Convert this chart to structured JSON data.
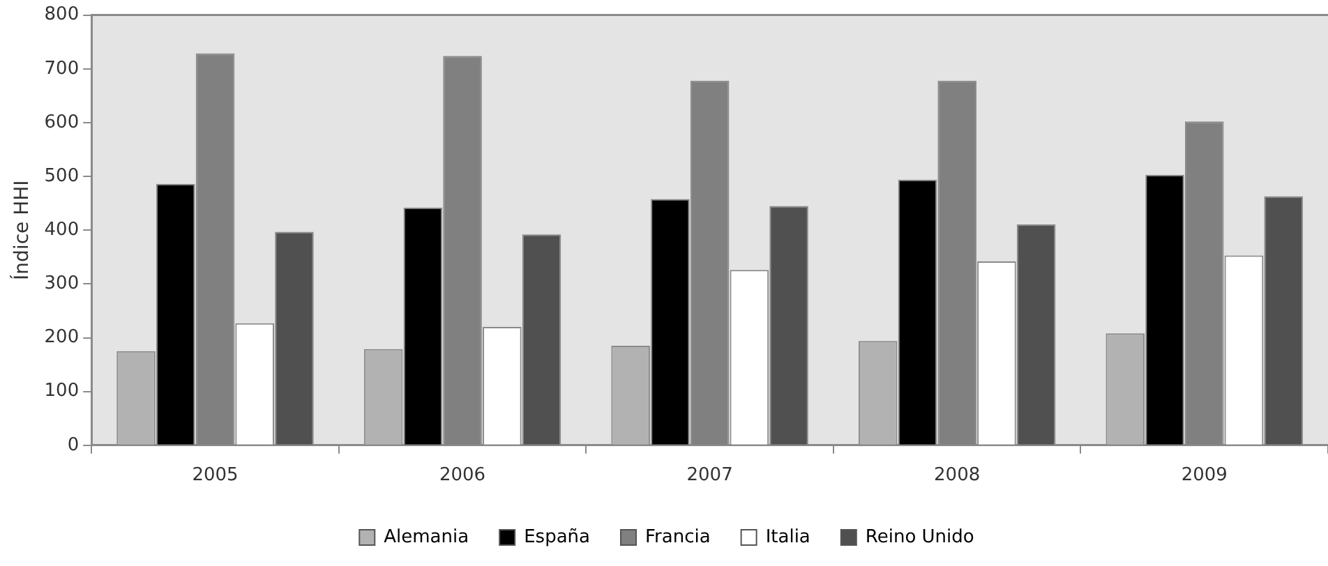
{
  "chart_data": {
    "type": "bar",
    "ylabel": "Índice HHI",
    "categories": [
      "2005",
      "2006",
      "2007",
      "2008",
      "2009"
    ],
    "series": [
      {
        "name": "Alemania",
        "color": "#b2b2b2",
        "values": [
          175,
          179,
          185,
          194,
          208
        ]
      },
      {
        "name": "España",
        "color": "#000000",
        "values": [
          486,
          442,
          458,
          494,
          503
        ]
      },
      {
        "name": "Francia",
        "color": "#808080",
        "values": [
          729,
          724,
          678,
          678,
          602
        ]
      },
      {
        "name": "Italia",
        "color": "#ffffff",
        "values": [
          227,
          220,
          326,
          342,
          353
        ]
      },
      {
        "name": "Reino Unido",
        "color": "#505050",
        "values": [
          397,
          392,
          445,
          411,
          463
        ]
      }
    ],
    "ylim": [
      0,
      800
    ],
    "yticks": [
      0,
      100,
      200,
      300,
      400,
      500,
      600,
      700,
      800
    ],
    "grid": false,
    "legend": "bottom"
  }
}
